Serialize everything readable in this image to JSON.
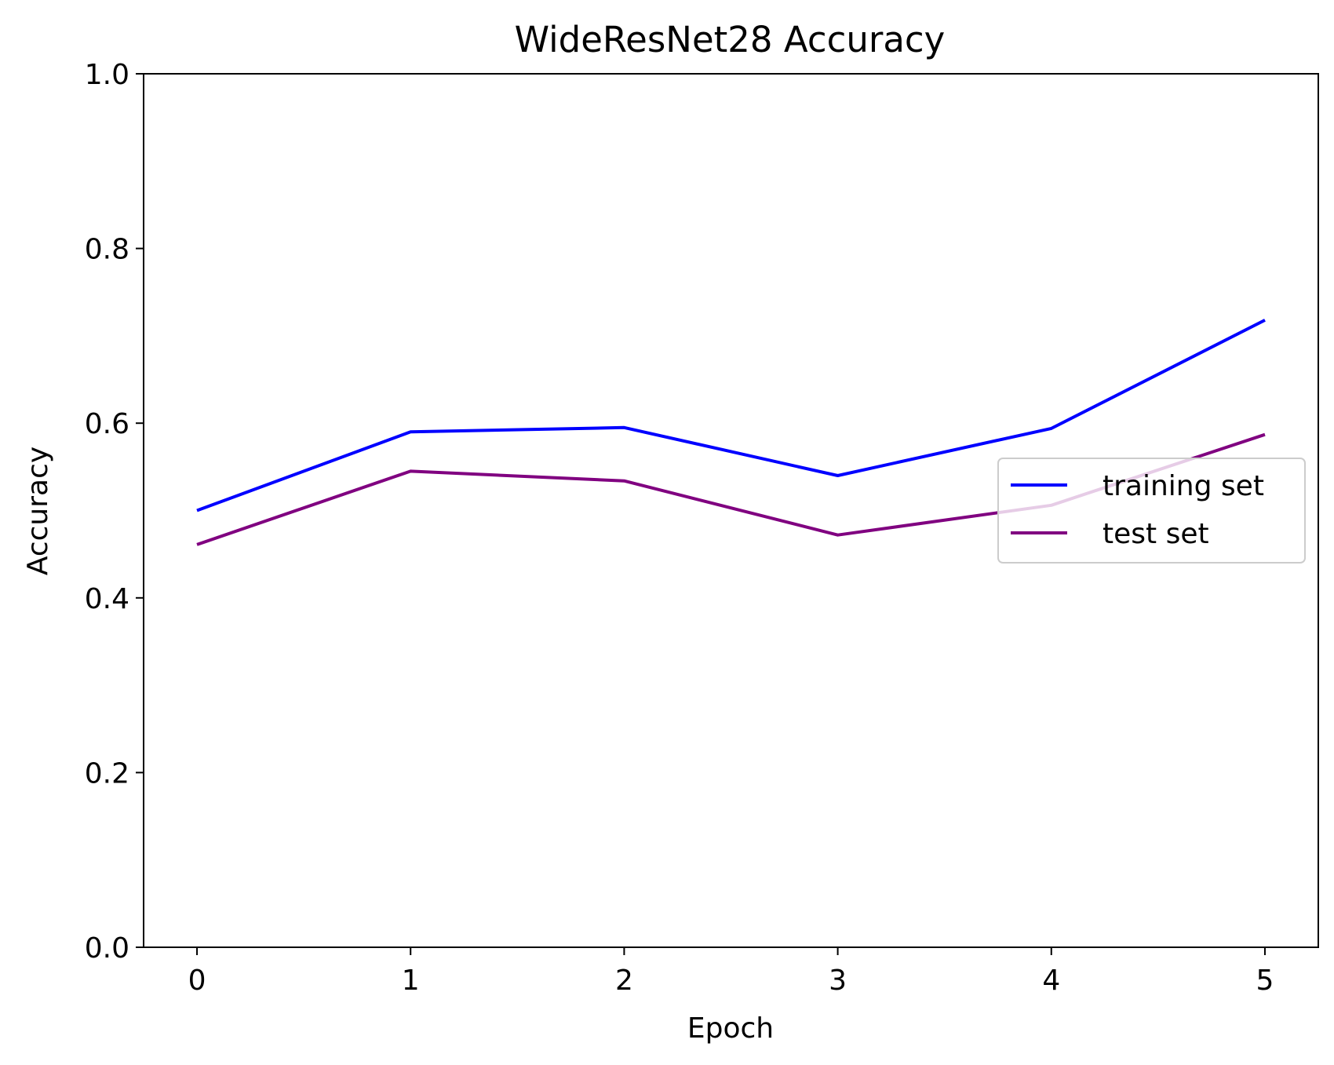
{
  "chart_data": {
    "type": "line",
    "title": "WideResNet28 Accuracy",
    "xlabel": "Epoch",
    "ylabel": "Accuracy",
    "x": [
      0,
      1,
      2,
      3,
      4,
      5
    ],
    "xlim": [
      -0.25,
      5.25
    ],
    "ylim": [
      0.0,
      1.0
    ],
    "xticks": [
      0,
      1,
      2,
      3,
      4,
      5
    ],
    "xtick_labels": [
      "0",
      "1",
      "2",
      "3",
      "4",
      "5"
    ],
    "yticks": [
      0.0,
      0.2,
      0.4,
      0.6,
      0.8,
      1.0
    ],
    "ytick_labels": [
      "0.0",
      "0.2",
      "0.4",
      "0.6",
      "0.8",
      "1.0"
    ],
    "grid": false,
    "legend_placement": "center-right",
    "series": [
      {
        "name": "training set",
        "color": "#0000ff",
        "values": [
          0.5,
          0.59,
          0.595,
          0.54,
          0.594,
          0.718
        ]
      },
      {
        "name": "test set",
        "color": "#800080",
        "values": [
          0.461,
          0.545,
          0.534,
          0.472,
          0.506,
          0.587
        ]
      }
    ]
  }
}
